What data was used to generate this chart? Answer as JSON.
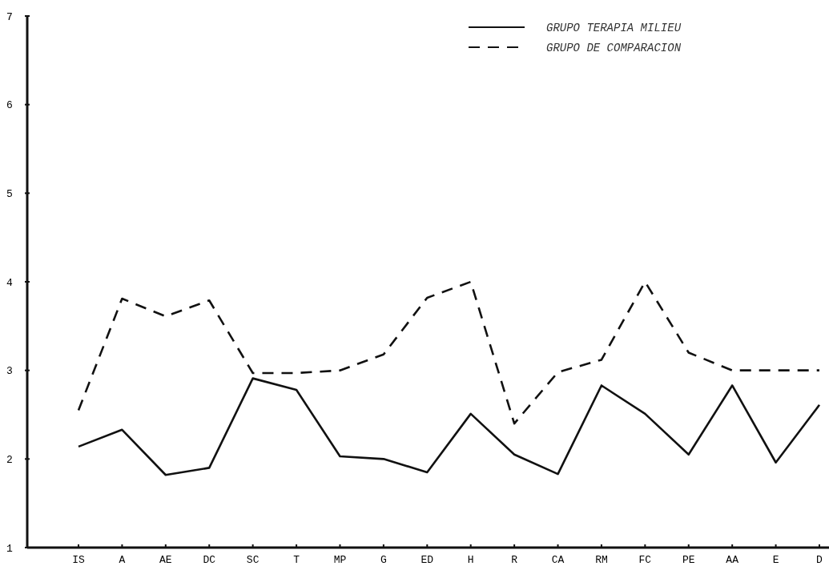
{
  "chart_data": {
    "type": "line",
    "categories": [
      "IS",
      "A",
      "AE",
      "DC",
      "SC",
      "T",
      "MP",
      "G",
      "ED",
      "H",
      "R",
      "CA",
      "RM",
      "FC",
      "PE",
      "AA",
      "E",
      "D"
    ],
    "series": [
      {
        "name": "GRUPO TERAPIA MILIEU",
        "color": "#111111",
        "line_style": "solid",
        "values": [
          2.14,
          2.33,
          1.82,
          1.9,
          2.91,
          2.78,
          2.03,
          2.0,
          1.85,
          2.51,
          2.05,
          1.83,
          2.83,
          2.51,
          2.05,
          2.83,
          1.96,
          2.61
        ]
      },
      {
        "name": "GRUPO DE COMPARACION",
        "color": "#111111",
        "line_style": "dashed",
        "values": [
          2.55,
          3.81,
          3.61,
          3.79,
          2.97,
          2.97,
          3.0,
          3.18,
          3.82,
          4.0,
          2.4,
          2.98,
          3.12,
          4.0,
          3.2,
          3.0,
          3.0,
          3.0
        ]
      }
    ],
    "ylim": [
      1,
      7
    ],
    "yticks": [
      1,
      2,
      3,
      4,
      5,
      6,
      7
    ],
    "grid": false,
    "legend": "top right",
    "marker": "none"
  }
}
